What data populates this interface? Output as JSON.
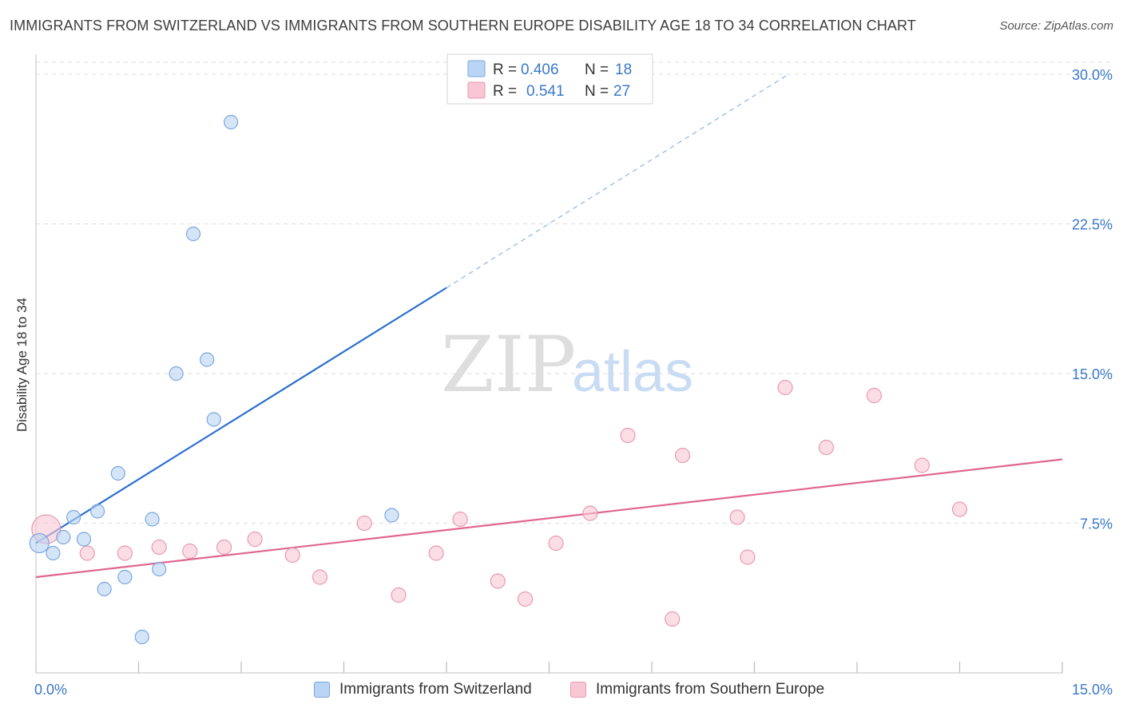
{
  "title": "IMMIGRANTS FROM SWITZERLAND VS IMMIGRANTS FROM SOUTHERN EUROPE DISABILITY AGE 18 TO 34 CORRELATION CHART",
  "source": "Source: ZipAtlas.com",
  "watermark": {
    "zip": "ZIP",
    "atlas": "atlas"
  },
  "colors": {
    "switzerland_fill": "#b9d4f4",
    "switzerland_stroke": "#7aa7dd",
    "switzerland_line": "#2b6fcf",
    "southern_europe_fill": "#f8c6d4",
    "southern_europe_stroke": "#e999b2",
    "southern_europe_line": "#e06690",
    "tick_label": "#3a78c9",
    "grid": "#dddddd"
  },
  "legend": {
    "rows": [
      {
        "r_label": "R = ",
        "r_value": "0.406",
        "n_label": "N = ",
        "n_value": "18"
      },
      {
        "r_label": "R = ",
        "r_value": "0.541",
        "n_label": "N = ",
        "n_value": "27"
      }
    ]
  },
  "chart_data": {
    "type": "scatter",
    "title": "IMMIGRANTS FROM SWITZERLAND VS IMMIGRANTS FROM SOUTHERN EUROPE DISABILITY AGE 18 TO 34 CORRELATION CHART",
    "xlabel": "",
    "ylabel": "Disability Age 18 to 34",
    "xlim": [
      0,
      15
    ],
    "ylim": [
      0,
      31
    ],
    "x_tick_labels": [
      "0.0%",
      "15.0%"
    ],
    "y_ticks": [
      7.5,
      15.0,
      22.5,
      30.0
    ],
    "y_tick_labels": [
      "7.5%",
      "15.0%",
      "22.5%",
      "30.0%"
    ],
    "grid": true,
    "legend_position": "top-center",
    "series": [
      {
        "name": "Immigrants from Switzerland",
        "r": 0.406,
        "n": 18,
        "points": [
          [
            0.05,
            6.5
          ],
          [
            0.25,
            6.0
          ],
          [
            0.4,
            6.8
          ],
          [
            0.55,
            7.8
          ],
          [
            0.7,
            6.7
          ],
          [
            0.9,
            8.1
          ],
          [
            1.0,
            4.2
          ],
          [
            1.2,
            10.0
          ],
          [
            1.3,
            4.8
          ],
          [
            1.55,
            1.8
          ],
          [
            1.7,
            7.7
          ],
          [
            1.8,
            5.2
          ],
          [
            2.05,
            15.0
          ],
          [
            2.3,
            22.0
          ],
          [
            2.5,
            15.7
          ],
          [
            2.6,
            12.7
          ],
          [
            2.85,
            27.6
          ],
          [
            5.2,
            7.9
          ]
        ],
        "trend": {
          "x1": 0.0,
          "y1": 6.5,
          "x2": 6.0,
          "y2": 19.3,
          "dash_x1": 6.0,
          "dash_y1": 19.3,
          "dash_x2": 11.0,
          "dash_y2": 30.0
        }
      },
      {
        "name": "Immigrants from Southern Europe",
        "r": 0.541,
        "n": 27,
        "points": [
          [
            0.15,
            7.2
          ],
          [
            0.75,
            6.0
          ],
          [
            1.3,
            6.0
          ],
          [
            1.8,
            6.3
          ],
          [
            2.25,
            6.1
          ],
          [
            2.75,
            6.3
          ],
          [
            3.2,
            6.7
          ],
          [
            3.75,
            5.9
          ],
          [
            4.15,
            4.8
          ],
          [
            4.8,
            7.5
          ],
          [
            5.3,
            3.9
          ],
          [
            5.85,
            6.0
          ],
          [
            6.2,
            7.7
          ],
          [
            6.75,
            4.6
          ],
          [
            7.15,
            3.7
          ],
          [
            7.6,
            6.5
          ],
          [
            8.1,
            8.0
          ],
          [
            8.65,
            11.9
          ],
          [
            9.3,
            2.7
          ],
          [
            9.45,
            10.9
          ],
          [
            10.25,
            7.8
          ],
          [
            10.4,
            5.8
          ],
          [
            10.95,
            14.3
          ],
          [
            11.55,
            11.3
          ],
          [
            12.25,
            13.9
          ],
          [
            12.95,
            10.4
          ],
          [
            13.5,
            8.2
          ]
        ],
        "trend": {
          "x1": 0.0,
          "y1": 4.8,
          "x2": 15.0,
          "y2": 10.7
        }
      }
    ]
  }
}
